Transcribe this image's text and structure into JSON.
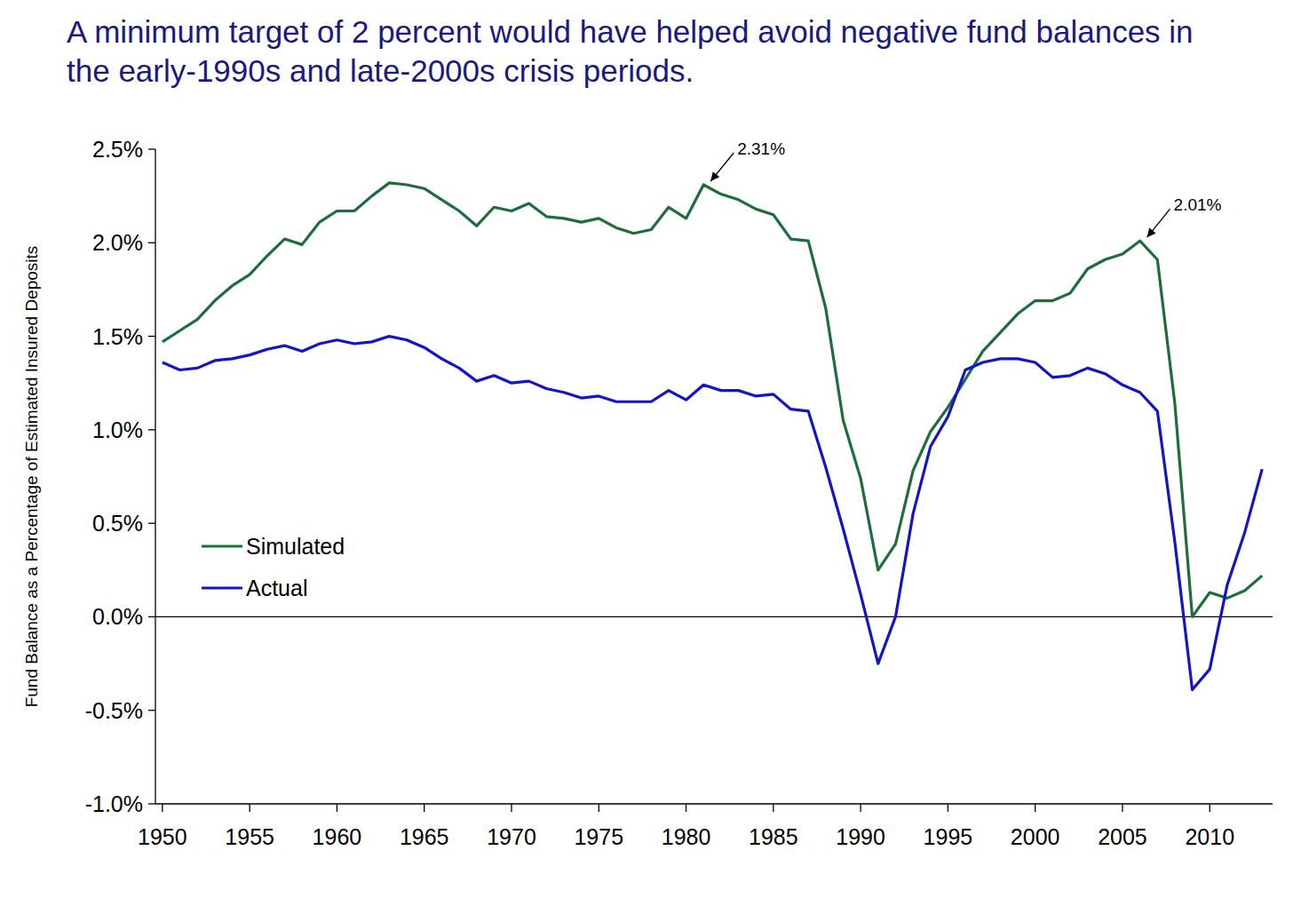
{
  "chart_data": {
    "type": "line",
    "title": "A minimum target of 2 percent would have helped avoid negative fund balances in the early-1990s and late-2000s crisis periods.",
    "y_label": "Fund Balance as a Percentage of Estimated Insured Deposits",
    "x": [
      1950,
      1951,
      1952,
      1953,
      1954,
      1955,
      1956,
      1957,
      1958,
      1959,
      1960,
      1961,
      1962,
      1963,
      1964,
      1965,
      1966,
      1967,
      1968,
      1969,
      1970,
      1971,
      1972,
      1973,
      1974,
      1975,
      1976,
      1977,
      1978,
      1979,
      1980,
      1981,
      1982,
      1983,
      1984,
      1985,
      1986,
      1987,
      1988,
      1989,
      1990,
      1991,
      1992,
      1993,
      1994,
      1995,
      1996,
      1997,
      1998,
      1999,
      2000,
      2001,
      2002,
      2003,
      2004,
      2005,
      2006,
      2007,
      2008,
      2009,
      2010,
      2011,
      2012,
      2013
    ],
    "series": [
      {
        "name": "Simulated",
        "color": "#1e6e3c",
        "values": [
          1.47,
          1.53,
          1.59,
          1.69,
          1.77,
          1.83,
          1.93,
          2.02,
          1.99,
          2.11,
          2.17,
          2.17,
          2.25,
          2.32,
          2.31,
          2.29,
          2.23,
          2.17,
          2.09,
          2.19,
          2.17,
          2.21,
          2.14,
          2.13,
          2.11,
          2.13,
          2.08,
          2.05,
          2.07,
          2.19,
          2.13,
          2.31,
          2.26,
          2.23,
          2.18,
          2.15,
          2.02,
          2.01,
          1.65,
          1.05,
          0.74,
          0.25,
          0.39,
          0.78,
          0.99,
          1.12,
          1.27,
          1.42,
          1.52,
          1.62,
          1.69,
          1.69,
          1.73,
          1.86,
          1.91,
          1.94,
          2.01,
          1.91,
          1.14,
          0.0,
          0.13,
          0.1,
          0.14,
          0.22
        ]
      },
      {
        "name": "Actual",
        "color": "#1414c8",
        "values": [
          1.36,
          1.32,
          1.33,
          1.37,
          1.38,
          1.4,
          1.43,
          1.45,
          1.42,
          1.46,
          1.48,
          1.46,
          1.47,
          1.5,
          1.48,
          1.44,
          1.38,
          1.33,
          1.26,
          1.29,
          1.25,
          1.26,
          1.22,
          1.2,
          1.17,
          1.18,
          1.15,
          1.15,
          1.15,
          1.21,
          1.16,
          1.24,
          1.21,
          1.21,
          1.18,
          1.19,
          1.11,
          1.1,
          0.8,
          0.47,
          0.12,
          -0.25,
          0.0,
          0.55,
          0.91,
          1.07,
          1.32,
          1.36,
          1.38,
          1.38,
          1.36,
          1.28,
          1.29,
          1.33,
          1.3,
          1.24,
          1.2,
          1.1,
          0.4,
          -0.39,
          -0.28,
          0.17,
          0.45,
          0.79
        ]
      }
    ],
    "xlim": [
      1949.6,
      2013.6
    ],
    "xticks": [
      1950,
      1955,
      1960,
      1965,
      1970,
      1975,
      1980,
      1985,
      1990,
      1995,
      2000,
      2005,
      2010
    ],
    "ylim": [
      -1.0,
      2.5
    ],
    "yticks": [
      {
        "value": -1.0,
        "label": "-1.0%"
      },
      {
        "value": -0.5,
        "label": "-0.5%"
      },
      {
        "value": 0,
        "label": "0.0%"
      },
      {
        "value": 0.5,
        "label": "0.5%"
      },
      {
        "value": 1.0,
        "label": "1.0%"
      },
      {
        "value": 1.5,
        "label": "1.5%"
      },
      {
        "value": 2.0,
        "label": "2.0%"
      },
      {
        "value": 2.5,
        "label": "2.5%"
      }
    ],
    "annotations": [
      {
        "text": "2.31%",
        "x": 1981,
        "y": 2.31
      },
      {
        "text": "2.01%",
        "x": 2006,
        "y": 2.01
      }
    ],
    "grid": false,
    "legend": "lower left"
  }
}
